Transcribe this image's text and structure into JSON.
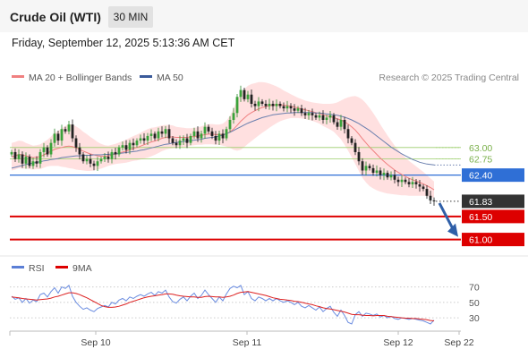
{
  "header": {
    "title": "Crude Oil (WTI)",
    "timeframe": "30 MIN",
    "datetime": "Friday, September 12, 2025 5:13:36 AM CET"
  },
  "chart_data": [
    {
      "type": "line",
      "legend": [
        {
          "name": "MA 20 + Bollinger Bands",
          "color": "#f08080"
        },
        {
          "name": "MA 50",
          "color": "#3a5a9a"
        }
      ],
      "legend_placement": "top-left",
      "credit": "Research © 2025 Trading Central",
      "x_ticks": [
        "Sep 10",
        "Sep 11",
        "Sep 12",
        "Sep 22"
      ],
      "ylim": [
        60.7,
        64.3
      ],
      "levels": [
        {
          "value": 63.0,
          "label": "63.00",
          "style": "thin",
          "color": "#9acd6a"
        },
        {
          "value": 62.75,
          "label": "62.75",
          "style": "thin",
          "color": "#9acd6a"
        },
        {
          "value": 62.4,
          "label": "62.40",
          "style": "medium",
          "color": "#2f6fd6"
        },
        {
          "value": 61.83,
          "label": "61.83",
          "style": "dotted",
          "color": "#333333"
        },
        {
          "value": 61.5,
          "label": "61.50",
          "style": "thick",
          "color": "#dd0000"
        },
        {
          "value": 61.0,
          "label": "61.00",
          "style": "thick",
          "color": "#dd0000"
        }
      ],
      "arrow": {
        "from": 61.83,
        "to": 61.0,
        "direction": "down",
        "color": "#2f5fa8"
      },
      "closes": [
        62.9,
        62.75,
        62.85,
        62.65,
        62.8,
        62.6,
        62.7,
        62.65,
        62.9,
        63.0,
        62.85,
        63.1,
        63.3,
        63.15,
        63.4,
        63.35,
        63.5,
        63.2,
        63.0,
        62.85,
        62.7,
        62.75,
        62.65,
        62.6,
        62.7,
        62.75,
        62.8,
        62.75,
        62.9,
        62.85,
        63.0,
        63.05,
        62.95,
        63.1,
        63.05,
        63.15,
        63.2,
        63.15,
        63.25,
        63.3,
        63.2,
        63.35,
        63.3,
        63.4,
        63.2,
        63.1,
        63.05,
        63.15,
        63.2,
        63.1,
        63.25,
        63.35,
        63.2,
        63.3,
        63.45,
        63.35,
        63.25,
        63.15,
        63.3,
        63.2,
        63.4,
        63.6,
        63.75,
        64.1,
        64.25,
        64.05,
        64.15,
        63.95,
        63.9,
        64.0,
        63.95,
        63.9,
        63.95,
        63.9,
        63.95,
        63.9,
        63.85,
        63.9,
        63.85,
        63.8,
        63.85,
        63.75,
        63.7,
        63.75,
        63.7,
        63.65,
        63.7,
        63.6,
        63.65,
        63.7,
        63.55,
        63.45,
        63.6,
        63.4,
        63.2,
        63.1,
        62.9,
        62.7,
        62.5,
        62.6,
        62.55,
        62.45,
        62.5,
        62.4,
        62.45,
        62.35,
        62.4,
        62.3,
        62.25,
        62.3,
        62.25,
        62.2,
        62.25,
        62.2,
        62.15,
        62.1,
        61.95,
        61.85,
        61.83
      ],
      "ma20": [
        62.8,
        62.82,
        62.85,
        62.84,
        62.82,
        62.8,
        62.78,
        62.79,
        62.8,
        62.84,
        62.88,
        62.92,
        62.96,
        62.98,
        63.0,
        63.02,
        63.03,
        63.02,
        62.99,
        62.96,
        62.92,
        62.89,
        62.86,
        62.84,
        62.82,
        62.81,
        62.81,
        62.82,
        62.84,
        62.86,
        62.88,
        62.9,
        62.92,
        62.95,
        62.98,
        63.0,
        63.03,
        63.06,
        63.09,
        63.12,
        63.14,
        63.17,
        63.2,
        63.22,
        63.23,
        63.23,
        63.22,
        63.22,
        63.22,
        63.22,
        63.23,
        63.24,
        63.25,
        63.26,
        63.28,
        63.29,
        63.29,
        63.28,
        63.28,
        63.28,
        63.3,
        63.34,
        63.4,
        63.48,
        63.57,
        63.64,
        63.71,
        63.76,
        63.8,
        63.84,
        63.87,
        63.89,
        63.91,
        63.92,
        63.93,
        63.93,
        63.92,
        63.91,
        63.9,
        63.88,
        63.86,
        63.84,
        63.82,
        63.8,
        63.78,
        63.76,
        63.74,
        63.71,
        63.69,
        63.67,
        63.65,
        63.62,
        63.6,
        63.56,
        63.51,
        63.45,
        63.38,
        63.29,
        63.19,
        63.1,
        63.01,
        62.93,
        62.85,
        62.77,
        62.7,
        62.63,
        62.57,
        62.51,
        62.46,
        62.41,
        62.37,
        62.33,
        62.3,
        62.27,
        62.24,
        62.21,
        62.17,
        62.13,
        62.08
      ],
      "bb_width": [
        0.3,
        0.3,
        0.3,
        0.3,
        0.28,
        0.27,
        0.26,
        0.26,
        0.27,
        0.28,
        0.29,
        0.32,
        0.36,
        0.38,
        0.42,
        0.45,
        0.48,
        0.48,
        0.47,
        0.45,
        0.42,
        0.4,
        0.37,
        0.34,
        0.3,
        0.27,
        0.24,
        0.22,
        0.22,
        0.22,
        0.23,
        0.24,
        0.25,
        0.26,
        0.27,
        0.28,
        0.29,
        0.3,
        0.31,
        0.31,
        0.3,
        0.29,
        0.28,
        0.27,
        0.26,
        0.25,
        0.23,
        0.22,
        0.21,
        0.2,
        0.19,
        0.19,
        0.19,
        0.2,
        0.21,
        0.22,
        0.22,
        0.22,
        0.22,
        0.24,
        0.28,
        0.35,
        0.45,
        0.55,
        0.62,
        0.63,
        0.63,
        0.62,
        0.6,
        0.58,
        0.55,
        0.52,
        0.48,
        0.44,
        0.4,
        0.36,
        0.32,
        0.29,
        0.26,
        0.24,
        0.22,
        0.21,
        0.2,
        0.2,
        0.2,
        0.21,
        0.22,
        0.24,
        0.26,
        0.28,
        0.31,
        0.36,
        0.42,
        0.5,
        0.58,
        0.66,
        0.74,
        0.8,
        0.85,
        0.86,
        0.85,
        0.82,
        0.78,
        0.73,
        0.68,
        0.63,
        0.58,
        0.53,
        0.49,
        0.45,
        0.41,
        0.38,
        0.35,
        0.32,
        0.29,
        0.26,
        0.23,
        0.2,
        0.18
      ],
      "ma50": [
        62.55,
        62.57,
        62.59,
        62.61,
        62.63,
        62.65,
        62.66,
        62.68,
        62.69,
        62.71,
        62.72,
        62.74,
        62.75,
        62.76,
        62.78,
        62.79,
        62.8,
        62.81,
        62.82,
        62.82,
        62.83,
        62.83,
        62.83,
        62.84,
        62.84,
        62.84,
        62.85,
        62.85,
        62.86,
        62.86,
        62.87,
        62.88,
        62.89,
        62.9,
        62.91,
        62.92,
        62.94,
        62.95,
        62.97,
        62.99,
        63.01,
        63.03,
        63.05,
        63.07,
        63.08,
        63.1,
        63.11,
        63.12,
        63.13,
        63.14,
        63.15,
        63.16,
        63.17,
        63.18,
        63.2,
        63.21,
        63.22,
        63.23,
        63.25,
        63.27,
        63.3,
        63.33,
        63.37,
        63.41,
        63.45,
        63.49,
        63.53,
        63.56,
        63.59,
        63.62,
        63.65,
        63.67,
        63.69,
        63.71,
        63.72,
        63.73,
        63.74,
        63.75,
        63.75,
        63.76,
        63.76,
        63.76,
        63.76,
        63.76,
        63.76,
        63.75,
        63.75,
        63.74,
        63.73,
        63.72,
        63.71,
        63.7,
        63.68,
        63.66,
        63.63,
        63.6,
        63.56,
        63.52,
        63.47,
        63.42,
        63.37,
        63.31,
        63.25,
        63.19,
        63.13,
        63.07,
        63.01,
        62.96,
        62.91,
        62.86,
        62.82,
        62.78,
        62.74,
        62.71,
        62.68,
        62.66,
        62.64,
        62.63,
        62.62
      ]
    },
    {
      "type": "line",
      "legend": [
        {
          "name": "RSI",
          "color": "#5b7fd6"
        },
        {
          "name": "9MA",
          "color": "#dd0000"
        }
      ],
      "legend_placement": "top-left",
      "ylim": [
        15,
        80
      ],
      "y_ticks": [
        70,
        50,
        30
      ],
      "rsi": [
        58,
        54,
        56,
        50,
        55,
        49,
        53,
        51,
        60,
        62,
        57,
        64,
        69,
        62,
        70,
        68,
        72,
        58,
        50,
        45,
        41,
        43,
        40,
        38,
        42,
        44,
        46,
        44,
        50,
        48,
        53,
        55,
        52,
        57,
        55,
        58,
        60,
        58,
        61,
        63,
        59,
        64,
        62,
        66,
        57,
        51,
        49,
        54,
        57,
        52,
        58,
        62,
        55,
        59,
        66,
        60,
        55,
        50,
        57,
        52,
        61,
        68,
        71,
        69,
        72,
        60,
        64,
        55,
        52,
        57,
        55,
        52,
        55,
        52,
        55,
        52,
        50,
        52,
        50,
        47,
        50,
        45,
        43,
        46,
        43,
        40,
        44,
        38,
        42,
        45,
        37,
        32,
        40,
        33,
        24,
        22,
        34,
        38,
        32,
        36,
        35,
        33,
        35,
        31,
        33,
        30,
        32,
        29,
        28,
        30,
        29,
        28,
        29,
        28,
        27,
        26,
        24,
        22,
        27
      ],
      "ma9": [
        57,
        56.5,
        56,
        55,
        54.5,
        54,
        53.5,
        53,
        53.5,
        54,
        54.5,
        55.5,
        57,
        58,
        59.5,
        61,
        62.5,
        62.5,
        61.5,
        60,
        58,
        56,
        53.5,
        51,
        48.5,
        46,
        44.5,
        43.5,
        43.5,
        44,
        45,
        46.5,
        48,
        50,
        51.5,
        53,
        54.5,
        56,
        57,
        58,
        58.5,
        59.5,
        60,
        61,
        61,
        60.5,
        59.5,
        58.5,
        58,
        57.5,
        57,
        57,
        56.5,
        56.5,
        57.5,
        58,
        57.5,
        57,
        57,
        56.5,
        57,
        58,
        59.5,
        61.5,
        63,
        63.5,
        64,
        63,
        62,
        61,
        60,
        59,
        57.5,
        56,
        55,
        54,
        53.5,
        53,
        52.5,
        51.5,
        51,
        50,
        49,
        48,
        47,
        45.5,
        44.5,
        43,
        42,
        41.5,
        40.5,
        39.5,
        38.5,
        37.5,
        36,
        34.5,
        34,
        34,
        33.5,
        33,
        33,
        32.5,
        33,
        33,
        33,
        32,
        31.5,
        31,
        30.5,
        30,
        29.5,
        29.5,
        29,
        29,
        28.5,
        28,
        27.5,
        26.5,
        26
      ]
    }
  ]
}
